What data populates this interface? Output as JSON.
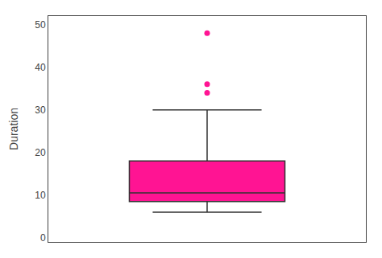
{
  "chart_data": {
    "type": "box",
    "ylabel": "Duration",
    "ylim": [
      -1,
      52
    ],
    "yticks": [
      0,
      10,
      20,
      30,
      40,
      50
    ],
    "q1": 8.5,
    "median": 10.5,
    "q3": 18.0,
    "whisker_low": 6.0,
    "whisker_high": 30.0,
    "outliers": [
      36.0,
      34.0,
      48.0
    ],
    "color": "#FF1493",
    "grid": false,
    "tick_labels": "y"
  }
}
